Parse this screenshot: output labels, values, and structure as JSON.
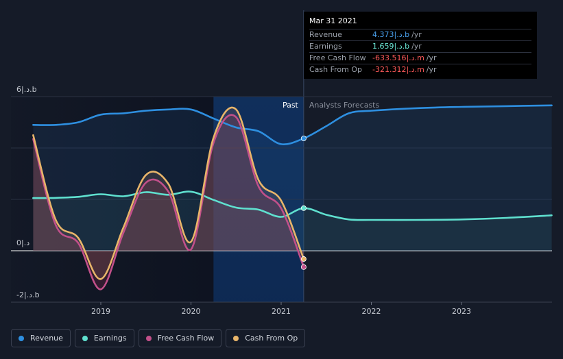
{
  "chart_data": {
    "type": "line",
    "title": "",
    "xlabel": "",
    "ylabel": "",
    "x_ticks": [
      "2019",
      "2020",
      "2021",
      "2022",
      "2023"
    ],
    "y_tick_labels": {
      "top": "6|.د.b",
      "zero": "0|.د",
      "bottom": "-2|.د.b"
    },
    "ylim": [
      -2,
      6
    ],
    "past_label": "Past",
    "forecast_label": "Analysts Forecasts",
    "series": [
      {
        "name": "Revenue",
        "color": "#2e8fe0",
        "x": [
          2018.25,
          2018.5,
          2018.75,
          2019.0,
          2019.25,
          2019.5,
          2019.75,
          2020.0,
          2020.25,
          2020.5,
          2020.75,
          2021.0,
          2021.25,
          2021.5,
          2021.75,
          2022.0,
          2022.5,
          2023.0,
          2023.5,
          2024.0
        ],
        "values": [
          4.9,
          4.9,
          5.0,
          5.3,
          5.35,
          5.45,
          5.5,
          5.5,
          5.15,
          4.8,
          4.65,
          4.15,
          4.373,
          4.85,
          5.35,
          5.45,
          5.55,
          5.6,
          5.63,
          5.66
        ]
      },
      {
        "name": "Earnings",
        "color": "#5fe0cf",
        "x": [
          2018.25,
          2018.5,
          2018.75,
          2019.0,
          2019.25,
          2019.5,
          2019.75,
          2020.0,
          2020.25,
          2020.5,
          2020.75,
          2021.0,
          2021.25,
          2021.5,
          2021.75,
          2022.0,
          2022.5,
          2023.0,
          2023.5,
          2024.0
        ],
        "values": [
          2.05,
          2.06,
          2.1,
          2.2,
          2.12,
          2.28,
          2.18,
          2.3,
          1.98,
          1.68,
          1.6,
          1.32,
          1.659,
          1.4,
          1.22,
          1.2,
          1.2,
          1.22,
          1.28,
          1.38
        ]
      },
      {
        "name": "Free Cash Flow",
        "color": "#c2508a",
        "x": [
          2018.25,
          2018.5,
          2018.75,
          2019.0,
          2019.25,
          2019.5,
          2019.75,
          2020.0,
          2020.25,
          2020.5,
          2020.75,
          2021.0,
          2021.25
        ],
        "values": [
          4.35,
          1.0,
          0.3,
          -1.5,
          0.7,
          2.65,
          2.3,
          0.05,
          4.2,
          5.2,
          2.5,
          1.65,
          -0.633516
        ]
      },
      {
        "name": "Cash From Op",
        "color": "#e8b56a",
        "x": [
          2018.25,
          2018.5,
          2018.75,
          2019.0,
          2019.25,
          2019.5,
          2019.75,
          2020.0,
          2020.25,
          2020.5,
          2020.75,
          2021.0,
          2021.25
        ],
        "values": [
          4.5,
          1.2,
          0.5,
          -1.1,
          0.9,
          2.95,
          2.6,
          0.35,
          4.4,
          5.5,
          2.75,
          1.95,
          -0.321312
        ]
      }
    ],
    "legend_position": "bottom-left"
  },
  "tooltip": {
    "date": "Mar 31 2021",
    "rows": [
      {
        "label": "Revenue",
        "value": "4.373|.د.b",
        "unit": "/yr",
        "color": "#4aa3f0"
      },
      {
        "label": "Earnings",
        "value": "1.659|.د.b",
        "unit": "/yr",
        "color": "#6be8d6"
      },
      {
        "label": "Free Cash Flow",
        "value": "-633.516|.د.m",
        "unit": "/yr",
        "color": "#ff5a5a"
      },
      {
        "label": "Cash From Op",
        "value": "-321.312|.د.m",
        "unit": "/yr",
        "color": "#ff5a5a"
      }
    ]
  },
  "legend": [
    {
      "label": "Revenue",
      "color": "#2e8fe0"
    },
    {
      "label": "Earnings",
      "color": "#5fe0cf"
    },
    {
      "label": "Free Cash Flow",
      "color": "#c2508a"
    },
    {
      "label": "Cash From Op",
      "color": "#e8b56a"
    }
  ]
}
